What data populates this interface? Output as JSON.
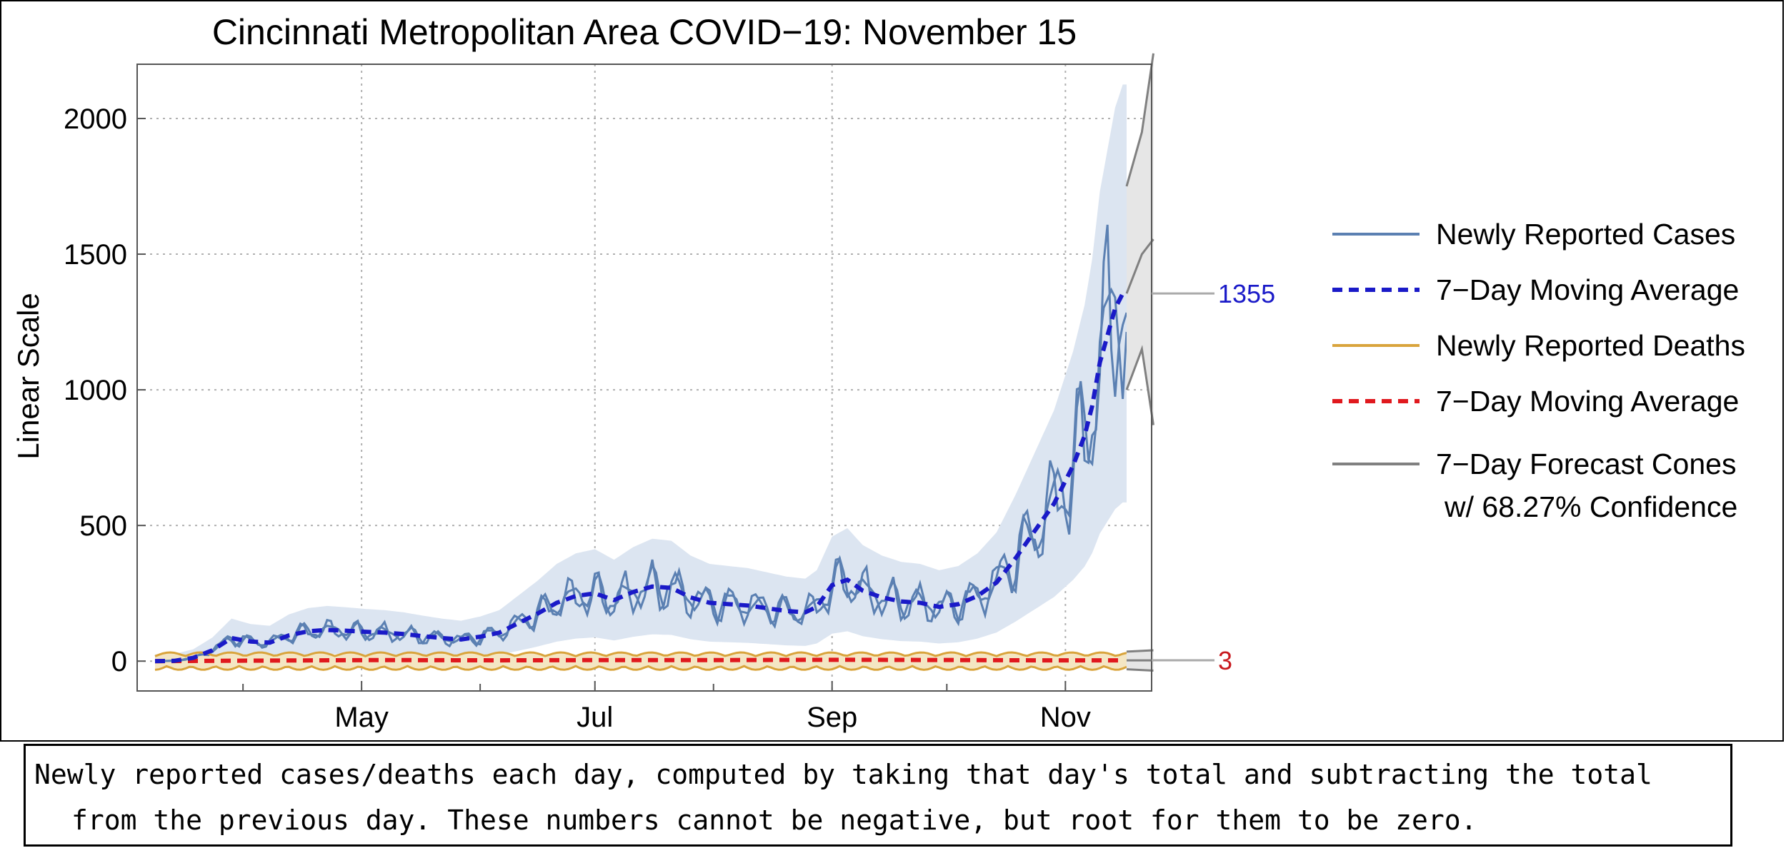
{
  "chart_data": {
    "type": "line",
    "title": "Cincinnati Metropolitan Area COVID−19: November 15",
    "ylabel": "Linear Scale",
    "xlabel": "",
    "ylim": [
      -110,
      2200
    ],
    "day_range": [
      0,
      254
    ],
    "start_date": "2020-03-08",
    "x_ticks": [
      {
        "label": "May",
        "day": 54
      },
      {
        "label": "Jul",
        "day": 115
      },
      {
        "label": "Sep",
        "day": 177
      },
      {
        "label": "Nov",
        "day": 238
      }
    ],
    "y_ticks": [
      0,
      500,
      1000,
      1500,
      2000
    ],
    "grid": true,
    "colors": {
      "cases": "#5b80b2",
      "cases_band": "#dce5f1",
      "cases_avg": "#1a1ac8",
      "deaths": "#d9a43c",
      "deaths_band": "#f4e6c3",
      "deaths_avg": "#e0191e",
      "forecast": "#808080",
      "forecast_band": "#e6e6e6",
      "grid": "#b0b0b0"
    },
    "series": [
      {
        "name": "Newly Reported Cases",
        "style": "solid",
        "avg_points": [
          [
            0,
            0
          ],
          [
            5,
            1
          ],
          [
            10,
            12
          ],
          [
            15,
            40
          ],
          [
            20,
            85
          ],
          [
            25,
            72
          ],
          [
            30,
            68
          ],
          [
            35,
            95
          ],
          [
            40,
            110
          ],
          [
            45,
            115
          ],
          [
            50,
            112
          ],
          [
            55,
            108
          ],
          [
            60,
            105
          ],
          [
            65,
            100
          ],
          [
            70,
            92
          ],
          [
            75,
            85
          ],
          [
            80,
            80
          ],
          [
            85,
            90
          ],
          [
            90,
            105
          ],
          [
            95,
            140
          ],
          [
            100,
            175
          ],
          [
            105,
            215
          ],
          [
            110,
            240
          ],
          [
            115,
            250
          ],
          [
            120,
            225
          ],
          [
            125,
            255
          ],
          [
            130,
            275
          ],
          [
            135,
            270
          ],
          [
            140,
            235
          ],
          [
            145,
            215
          ],
          [
            150,
            210
          ],
          [
            155,
            205
          ],
          [
            160,
            195
          ],
          [
            165,
            185
          ],
          [
            170,
            180
          ],
          [
            173,
            200
          ],
          [
            177,
            280
          ],
          [
            181,
            300
          ],
          [
            185,
            260
          ],
          [
            190,
            235
          ],
          [
            195,
            220
          ],
          [
            200,
            215
          ],
          [
            205,
            200
          ],
          [
            210,
            210
          ],
          [
            215,
            240
          ],
          [
            220,
            290
          ],
          [
            225,
            380
          ],
          [
            230,
            480
          ],
          [
            235,
            580
          ],
          [
            240,
            720
          ],
          [
            243,
            830
          ],
          [
            245,
            940
          ],
          [
            247,
            1100
          ],
          [
            249,
            1200
          ],
          [
            251,
            1300
          ],
          [
            253,
            1355
          ]
        ]
      },
      {
        "name": "7−Day Moving Average",
        "style": "dashed"
      },
      {
        "name": "Newly Reported Deaths",
        "style": "solid",
        "avg_points": [
          [
            0,
            0
          ],
          [
            30,
            2
          ],
          [
            60,
            4
          ],
          [
            90,
            3
          ],
          [
            120,
            4
          ],
          [
            150,
            4
          ],
          [
            180,
            5
          ],
          [
            210,
            4
          ],
          [
            230,
            3
          ],
          [
            253,
            3
          ]
        ]
      },
      {
        "name": "7−Day Moving Average",
        "style": "dashed"
      },
      {
        "name": "7−Day Forecast Cones",
        "name_line2": "w/ 68.27% Confidence",
        "style": "solid"
      }
    ],
    "forecast": {
      "cases_center": [
        [
          254,
          1355
        ],
        [
          258,
          1500
        ],
        [
          261,
          1555
        ]
      ],
      "cases_upper": [
        [
          254,
          1750
        ],
        [
          258,
          1950
        ],
        [
          261,
          2240
        ]
      ],
      "cases_lower": [
        [
          254,
          1000
        ],
        [
          258,
          1150
        ],
        [
          261,
          870
        ]
      ],
      "deaths_center": [
        [
          254,
          3
        ],
        [
          261,
          3
        ]
      ],
      "deaths_upper": [
        [
          254,
          35
        ],
        [
          261,
          40
        ]
      ],
      "deaths_lower": [
        [
          254,
          -30
        ],
        [
          261,
          -35
        ]
      ]
    },
    "end_labels": [
      {
        "text": "1355",
        "value": 1355,
        "color": "#1a1ac8"
      },
      {
        "text": "3",
        "value": 3,
        "color": "#c8191e"
      }
    ]
  },
  "caption": {
    "line1": "Newly reported cases/deaths each day, computed by taking that day's total and subtracting the total",
    "line2": "from the previous day. These numbers cannot be negative, but root for them to be zero."
  }
}
